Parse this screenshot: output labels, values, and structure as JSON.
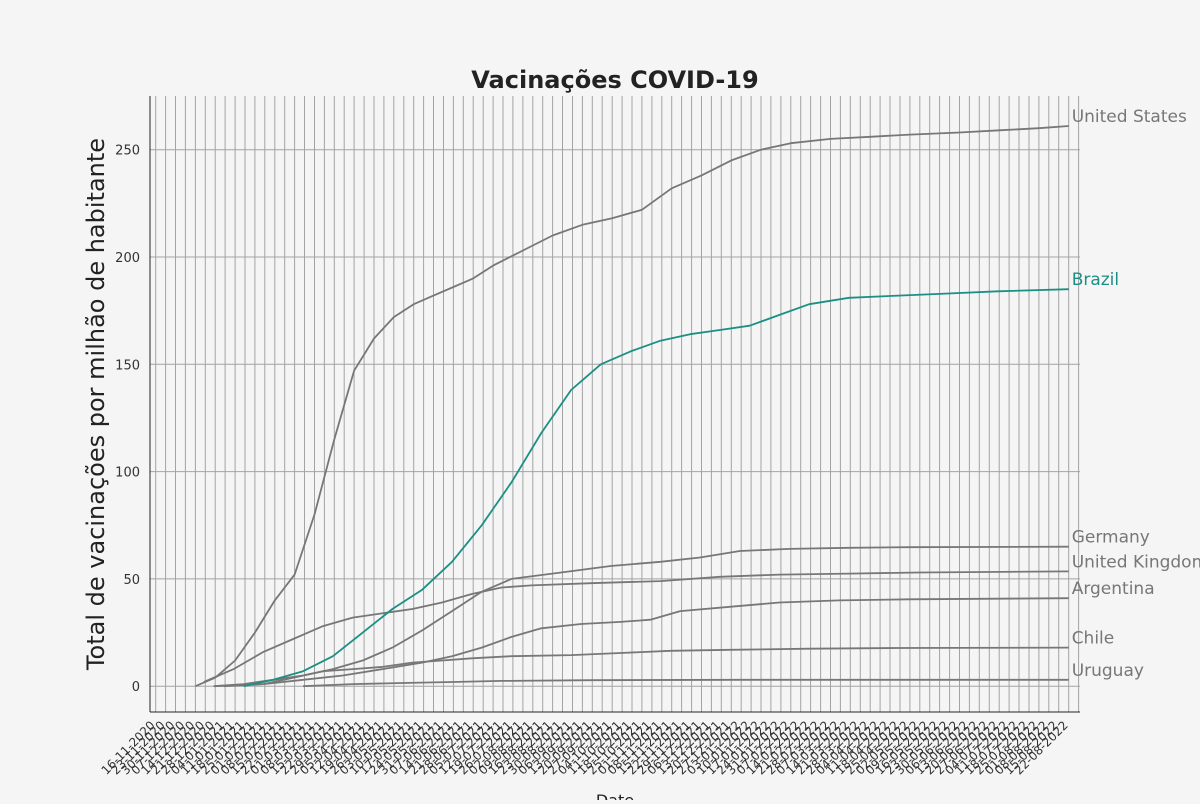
{
  "chart_data": {
    "type": "line",
    "title": "Vacinações COVID-19",
    "xlabel": "Date",
    "ylabel": "Total de vacinações por milhão de habitante",
    "ylim": [
      -12,
      275
    ],
    "yticks": [
      0,
      50,
      100,
      150,
      200,
      250
    ],
    "x_range": [
      "2020-11-12",
      "2022-08-30"
    ],
    "x_tick_labels": [
      "16-11-2020",
      "23-11-2020",
      "30-11-2020",
      "07-12-2020",
      "14-12-2020",
      "21-12-2020",
      "28-12-2020",
      "04-01-2021",
      "11-01-2021",
      "18-01-2021",
      "25-01-2021",
      "01-02-2021",
      "08-02-2021",
      "15-02-2021",
      "22-02-2021",
      "01-03-2021",
      "08-03-2021",
      "15-03-2021",
      "22-03-2021",
      "29-03-2021",
      "05-04-2021",
      "12-04-2021",
      "19-04-2021",
      "26-04-2021",
      "03-05-2021",
      "10-05-2021",
      "17-05-2021",
      "24-05-2021",
      "31-05-2021",
      "07-06-2021",
      "14-06-2021",
      "21-06-2021",
      "28-06-2021",
      "05-07-2021",
      "12-07-2021",
      "19-07-2021",
      "26-07-2021",
      "02-08-2021",
      "09-08-2021",
      "16-08-2021",
      "23-08-2021",
      "30-08-2021",
      "06-09-2021",
      "13-09-2021",
      "20-09-2021",
      "27-09-2021",
      "04-10-2021",
      "11-10-2021",
      "18-10-2021",
      "25-10-2021",
      "01-11-2021",
      "08-11-2021",
      "15-11-2021",
      "22-11-2021",
      "29-11-2021",
      "06-12-2021",
      "13-12-2021",
      "20-12-2021",
      "27-12-2021",
      "03-01-2022",
      "10-01-2022",
      "17-01-2022",
      "24-01-2022",
      "31-01-2022",
      "07-02-2022",
      "14-02-2022",
      "21-02-2022",
      "28-02-2022",
      "07-03-2022",
      "14-03-2022",
      "21-03-2022",
      "28-03-2022",
      "04-04-2022",
      "11-04-2022",
      "18-04-2022",
      "25-04-2022",
      "02-05-2022",
      "09-05-2022",
      "16-05-2022",
      "23-05-2022",
      "30-05-2022",
      "06-06-2022",
      "13-06-2022",
      "20-06-2022",
      "27-06-2022",
      "04-07-2022",
      "11-07-2022",
      "18-07-2022",
      "25-07-2022",
      "01-08-2022",
      "08-08-2022",
      "15-08-2022",
      "22-08-2022"
    ],
    "grid": true,
    "highlight_color": "#1a9085",
    "muted_color": "#777777",
    "series": [
      {
        "name": "United States",
        "color": "#777777",
        "x": [
          "2020-12-14",
          "2020-12-28",
          "2021-01-11",
          "2021-01-25",
          "2021-02-08",
          "2021-02-22",
          "2021-03-08",
          "2021-03-22",
          "2021-04-05",
          "2021-04-19",
          "2021-05-03",
          "2021-05-17",
          "2021-05-31",
          "2021-06-14",
          "2021-06-28",
          "2021-07-12",
          "2021-08-02",
          "2021-08-23",
          "2021-09-13",
          "2021-10-04",
          "2021-10-25",
          "2021-11-15",
          "2021-12-06",
          "2021-12-27",
          "2022-01-17",
          "2022-02-07",
          "2022-03-07",
          "2022-04-04",
          "2022-05-02",
          "2022-06-06",
          "2022-07-04",
          "2022-08-01",
          "2022-08-22"
        ],
        "values": [
          0,
          4,
          12,
          25,
          40,
          52,
          80,
          115,
          147,
          162,
          172,
          178,
          182,
          186,
          190,
          196,
          203,
          210,
          215,
          218,
          222,
          232,
          238,
          245,
          250,
          253,
          255,
          256,
          257,
          258,
          259,
          260,
          261
        ]
      },
      {
        "name": "Brazil",
        "color": "#1a9085",
        "x": [
          "2021-01-17",
          "2021-02-07",
          "2021-02-28",
          "2021-03-21",
          "2021-04-11",
          "2021-05-02",
          "2021-05-23",
          "2021-06-13",
          "2021-07-04",
          "2021-07-25",
          "2021-08-15",
          "2021-09-05",
          "2021-09-26",
          "2021-10-17",
          "2021-11-07",
          "2021-11-28",
          "2021-12-19",
          "2022-01-09",
          "2022-01-30",
          "2022-02-20",
          "2022-03-20",
          "2022-04-24",
          "2022-05-29",
          "2022-07-03",
          "2022-08-22"
        ],
        "values": [
          0,
          3,
          7,
          14,
          25,
          36,
          45,
          58,
          75,
          95,
          118,
          138,
          150,
          156,
          161,
          164,
          166,
          168,
          173,
          178,
          181,
          182,
          183,
          184,
          185
        ]
      },
      {
        "name": "Germany",
        "color": "#777777",
        "x": [
          "2020-12-27",
          "2021-01-17",
          "2021-02-07",
          "2021-02-28",
          "2021-03-21",
          "2021-04-11",
          "2021-05-02",
          "2021-05-23",
          "2021-06-13",
          "2021-07-04",
          "2021-07-25",
          "2021-08-29",
          "2021-10-03",
          "2021-11-07",
          "2021-12-05",
          "2022-01-02",
          "2022-02-06",
          "2022-03-20",
          "2022-05-01",
          "2022-08-22"
        ],
        "values": [
          0,
          1,
          3,
          5,
          8,
          12,
          18,
          26,
          35,
          44,
          50,
          53,
          56,
          58,
          60,
          63,
          64,
          64.5,
          64.8,
          65
        ]
      },
      {
        "name": "United Kingdom",
        "color": "#777777",
        "x": [
          "2020-12-20",
          "2021-01-10",
          "2021-01-31",
          "2021-02-21",
          "2021-03-14",
          "2021-04-04",
          "2021-04-25",
          "2021-05-16",
          "2021-06-06",
          "2021-06-27",
          "2021-07-18",
          "2021-08-08",
          "2021-09-19",
          "2021-11-07",
          "2021-12-19",
          "2022-01-30",
          "2022-03-20",
          "2022-05-08",
          "2022-08-22"
        ],
        "values": [
          2,
          8,
          16,
          22,
          28,
          32,
          34,
          36,
          39,
          43,
          46,
          47,
          48,
          49,
          51,
          52,
          52.5,
          53,
          53.5
        ]
      },
      {
        "name": "Argentina",
        "color": "#777777",
        "x": [
          "2021-01-03",
          "2021-01-31",
          "2021-02-28",
          "2021-03-28",
          "2021-04-25",
          "2021-05-23",
          "2021-06-13",
          "2021-07-04",
          "2021-07-25",
          "2021-08-15",
          "2021-09-12",
          "2021-10-10",
          "2021-10-31",
          "2021-11-21",
          "2021-12-26",
          "2022-01-30",
          "2022-03-13",
          "2022-05-01",
          "2022-08-22"
        ],
        "values": [
          0,
          1,
          3,
          5,
          8,
          11,
          14,
          18,
          23,
          27,
          29,
          30,
          31,
          35,
          37,
          39,
          40,
          40.5,
          41
        ]
      },
      {
        "name": "Chile",
        "color": "#777777",
        "x": [
          "2020-12-27",
          "2021-01-31",
          "2021-02-21",
          "2021-03-14",
          "2021-04-04",
          "2021-04-25",
          "2021-05-16",
          "2021-06-06",
          "2021-06-27",
          "2021-07-25",
          "2021-09-05",
          "2021-10-10",
          "2021-11-14",
          "2021-12-26",
          "2022-02-20",
          "2022-04-24",
          "2022-08-22"
        ],
        "values": [
          0,
          1,
          4,
          7,
          8,
          9,
          11,
          12,
          13,
          14,
          14.5,
          15.5,
          16.5,
          17,
          17.5,
          17.8,
          18
        ]
      },
      {
        "name": "Uruguay",
        "color": "#777777",
        "x": [
          "2021-02-28",
          "2021-04-04",
          "2021-05-09",
          "2021-06-13",
          "2021-07-18",
          "2021-09-19",
          "2022-01-02",
          "2022-08-22"
        ],
        "values": [
          0,
          1,
          1.5,
          2,
          2.5,
          2.8,
          3,
          3
        ]
      }
    ]
  }
}
